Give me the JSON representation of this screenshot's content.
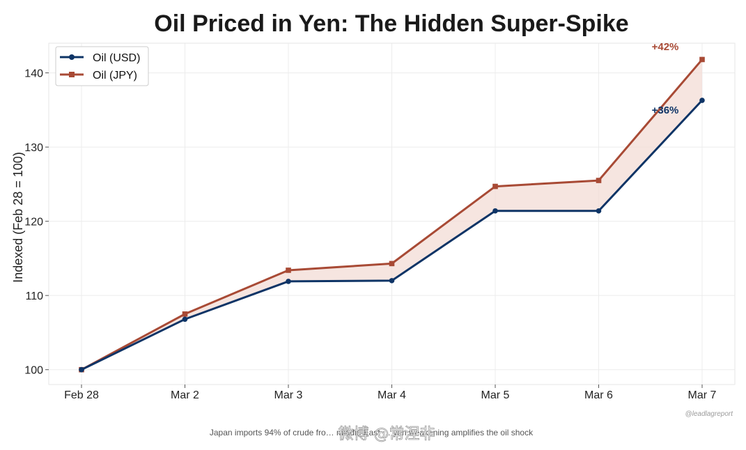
{
  "chart_data": {
    "type": "line",
    "title": "Oil Priced in Yen: The Hidden Super-Spike",
    "xlabel": "",
    "ylabel": "Indexed (Feb 28 = 100)",
    "categories": [
      "Feb 28",
      "Mar 2",
      "Mar 3",
      "Mar 4",
      "Mar 5",
      "Mar 6",
      "Mar 7"
    ],
    "series": [
      {
        "name": "Oil (USD)",
        "color": "#0e3466",
        "marker": "circle",
        "values": [
          100,
          106.8,
          111.9,
          112.0,
          121.4,
          121.4,
          136.3
        ]
      },
      {
        "name": "Oil (JPY)",
        "color": "#a84a35",
        "marker": "square",
        "values": [
          100,
          107.5,
          113.4,
          114.3,
          124.7,
          125.5,
          141.8
        ]
      }
    ],
    "fill_between": {
      "color": "#f3dcd6"
    },
    "ylim": [
      98,
      144
    ],
    "yticks": [
      100,
      110,
      120,
      130,
      140
    ],
    "grid": true,
    "legend_position": "top-left",
    "annotations": [
      {
        "text": "+42%",
        "series": "Oil (JPY)",
        "color": "#a84a35"
      },
      {
        "text": "+36%",
        "series": "Oil (USD)",
        "color": "#0e3466"
      }
    ],
    "source": "@leadlagreport",
    "caption": "Japan imports 94% of crude fro… middle East … yen weakening amplifies the oil shock",
    "watermark": "微博 @常涅非"
  }
}
